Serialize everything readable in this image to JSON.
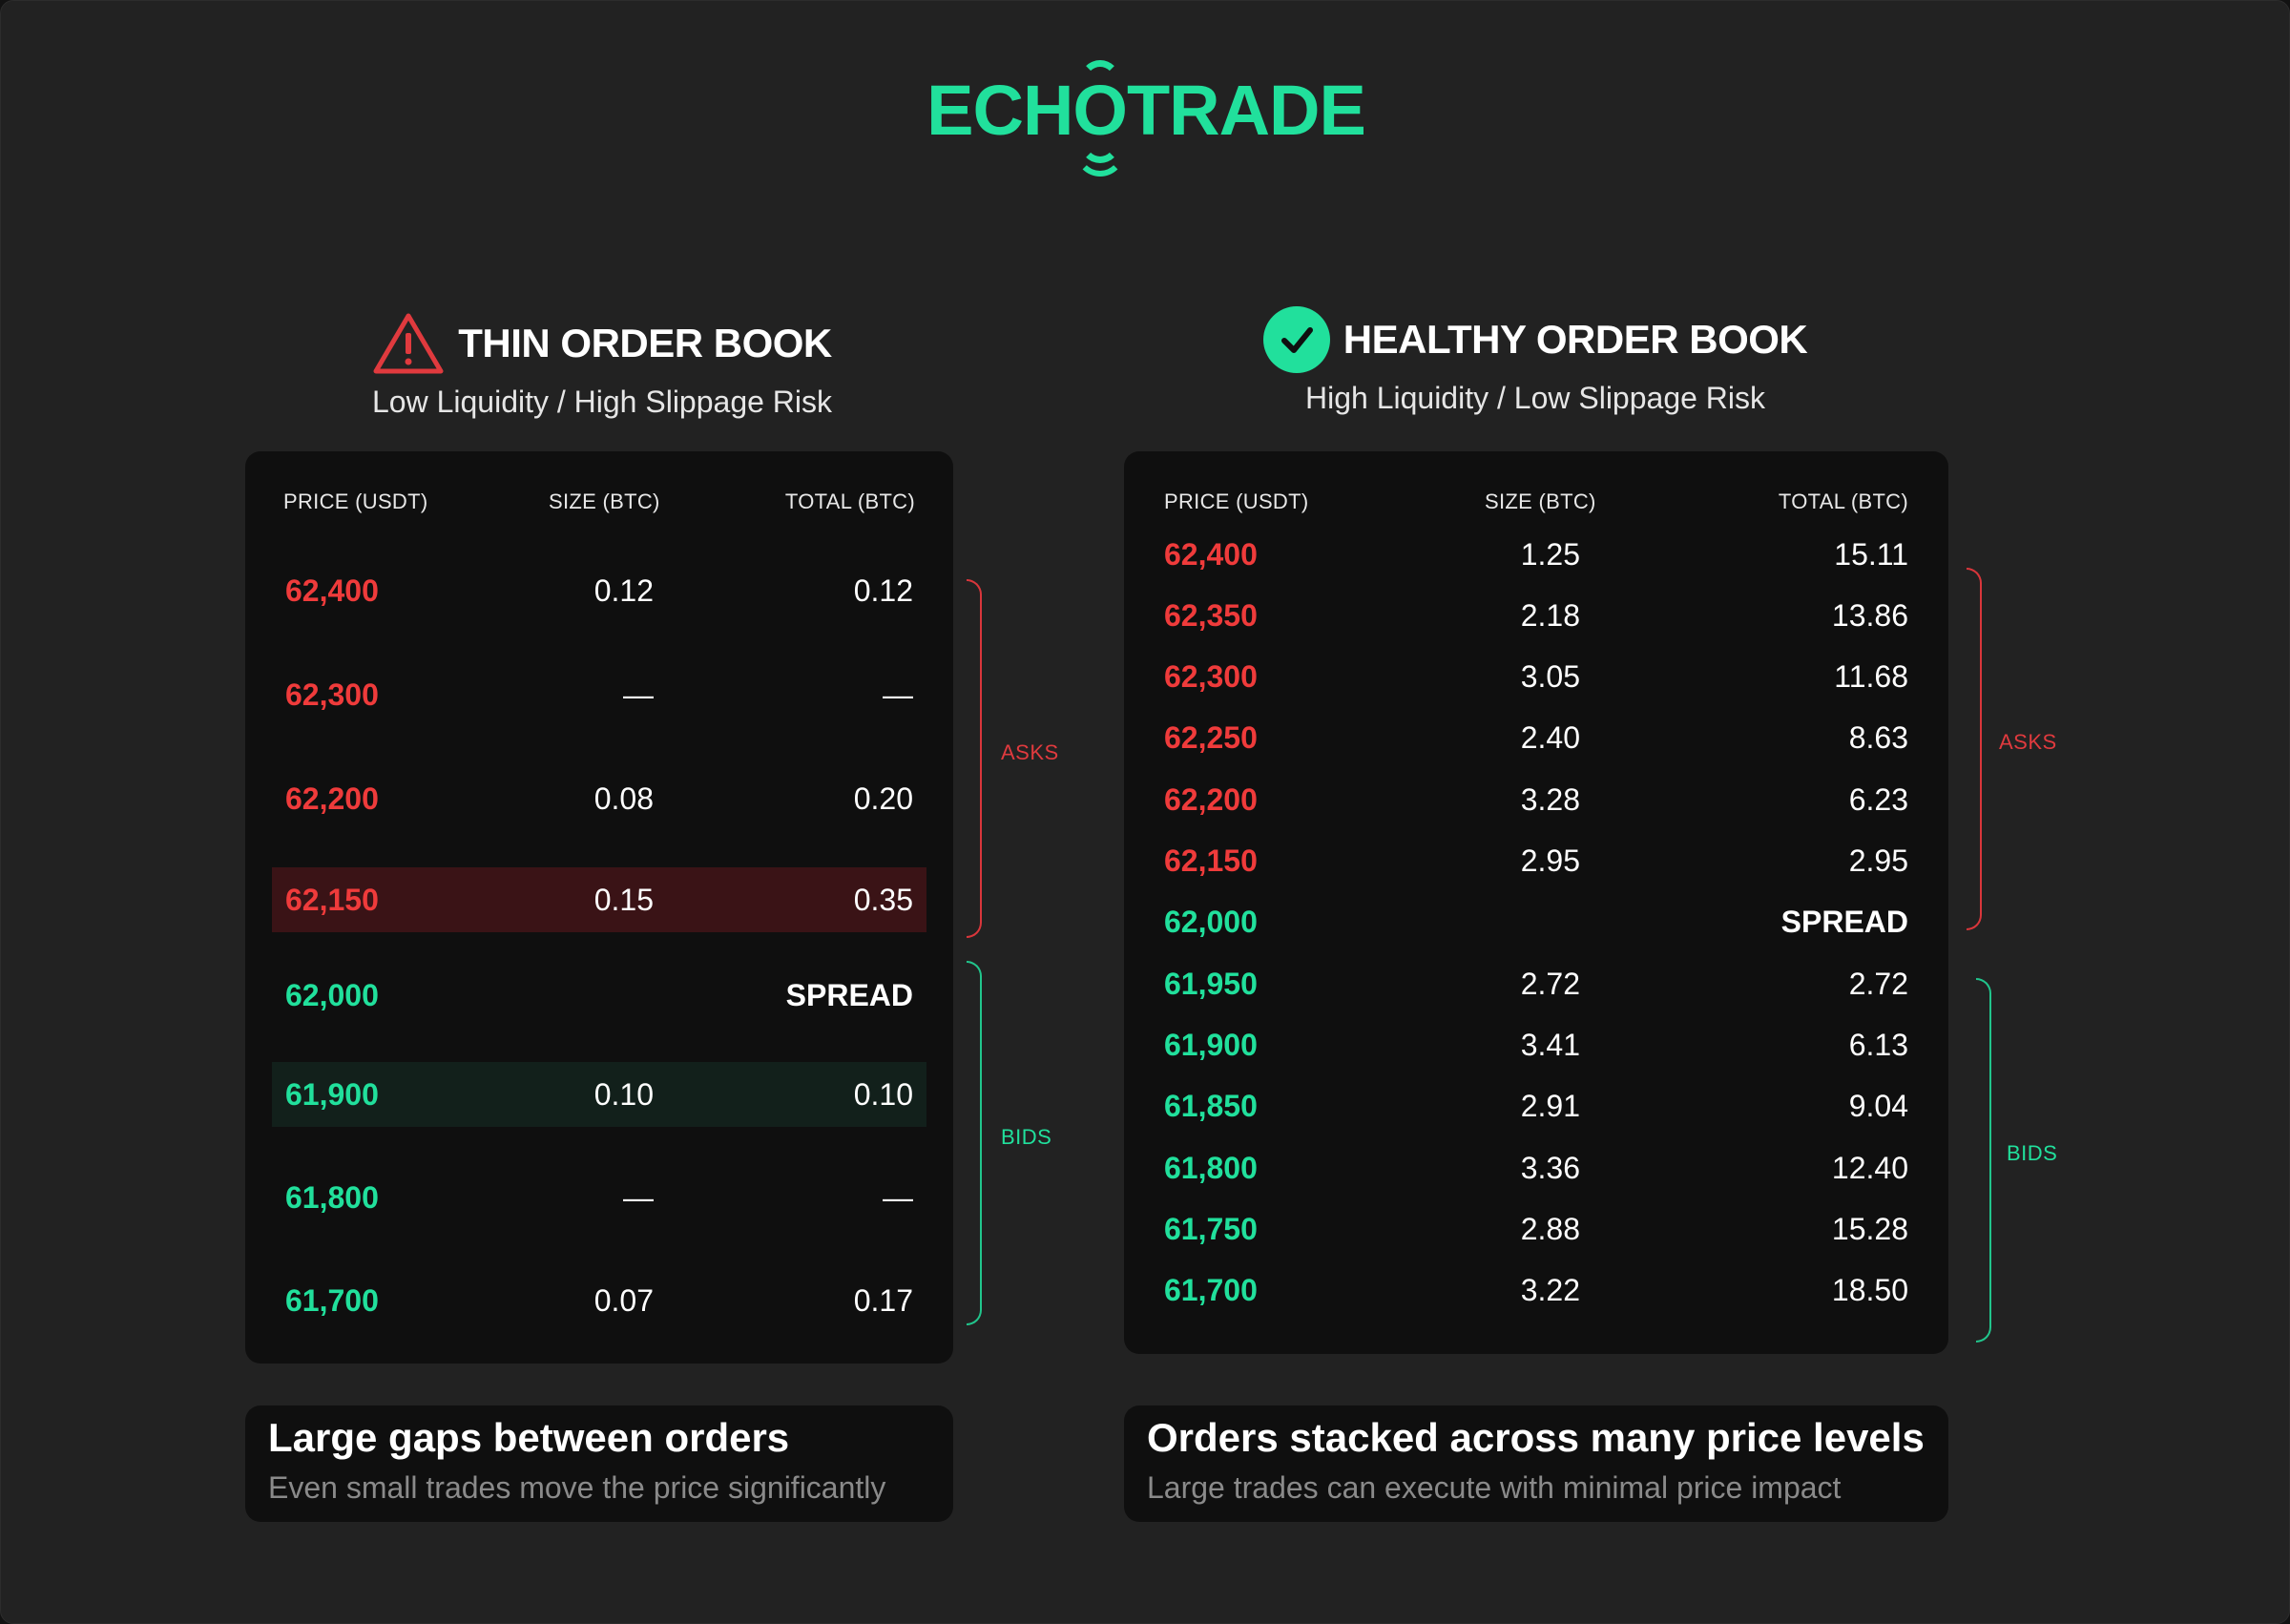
{
  "logo": {
    "before": "ECH",
    "o": "O",
    "after": "TRADE"
  },
  "thin": {
    "title": "THIN ORDER BOOK",
    "subtitle": "Low Liquidity / High Slippage Risk",
    "columns": [
      "PRICE (USDT)",
      "SIZE (BTC)",
      "TOTAL (BTC)"
    ],
    "rows": [
      {
        "price": "62,400",
        "size": "0.12",
        "total": "0.12",
        "side": "ask"
      },
      {
        "price": "62,300",
        "size": "—",
        "total": "—",
        "side": "ask"
      },
      {
        "price": "62,200",
        "size": "0.08",
        "total": "0.20",
        "side": "ask"
      },
      {
        "price": "62,150",
        "size": "0.15",
        "total": "0.35",
        "side": "ask",
        "highlight": true
      },
      {
        "price": "62,000",
        "spread": "SPREAD",
        "side": "bid"
      },
      {
        "price": "61,900",
        "size": "0.10",
        "total": "0.10",
        "side": "bid",
        "highlight": true
      },
      {
        "price": "61,800",
        "size": "—",
        "total": "—",
        "side": "bid"
      },
      {
        "price": "61,700",
        "size": "0.07",
        "total": "0.17",
        "side": "bid"
      }
    ],
    "asks_label": "ASKS",
    "bids_label": "BIDS",
    "card": {
      "title": "Large gaps between orders",
      "subtitle": "Even small trades move the price significantly"
    }
  },
  "healthy": {
    "title": "HEALTHY ORDER BOOK",
    "subtitle": "High Liquidity / Low Slippage Risk",
    "columns": [
      "PRICE (USDT)",
      "SIZE (BTC)",
      "TOTAL (BTC)"
    ],
    "rows": [
      {
        "price": "62,400",
        "size": "1.25",
        "total": "15.11",
        "side": "ask"
      },
      {
        "price": "62,350",
        "size": "2.18",
        "total": "13.86",
        "side": "ask"
      },
      {
        "price": "62,300",
        "size": "3.05",
        "total": "11.68",
        "side": "ask"
      },
      {
        "price": "62,250",
        "size": "2.40",
        "total": "8.63",
        "side": "ask"
      },
      {
        "price": "62,200",
        "size": "3.28",
        "total": "6.23",
        "side": "ask"
      },
      {
        "price": "62,150",
        "size": "2.95",
        "total": "2.95",
        "side": "ask"
      },
      {
        "price": "62,000",
        "spread": "SPREAD",
        "side": "bid"
      },
      {
        "price": "61,950",
        "size": "2.72",
        "total": "2.72",
        "side": "bid"
      },
      {
        "price": "61,900",
        "size": "3.41",
        "total": "6.13",
        "side": "bid"
      },
      {
        "price": "61,850",
        "size": "2.91",
        "total": "9.04",
        "side": "bid"
      },
      {
        "price": "61,800",
        "size": "3.36",
        "total": "12.40",
        "side": "bid"
      },
      {
        "price": "61,750",
        "size": "2.88",
        "total": "15.28",
        "side": "bid"
      },
      {
        "price": "61,700",
        "size": "3.22",
        "total": "18.50",
        "side": "bid"
      }
    ],
    "asks_label": "ASKS",
    "bids_label": "BIDS",
    "card": {
      "title": "Orders stacked across many price levels",
      "subtitle": "Large trades can execute with minimal price impact"
    }
  },
  "colors": {
    "accent_green": "#21e09c",
    "ask_red": "#ef3b3b",
    "background": "#222222",
    "panel": "#0f0f0f"
  },
  "icons": {
    "thin": "warning-triangle-icon",
    "healthy": "check-circle-icon"
  }
}
